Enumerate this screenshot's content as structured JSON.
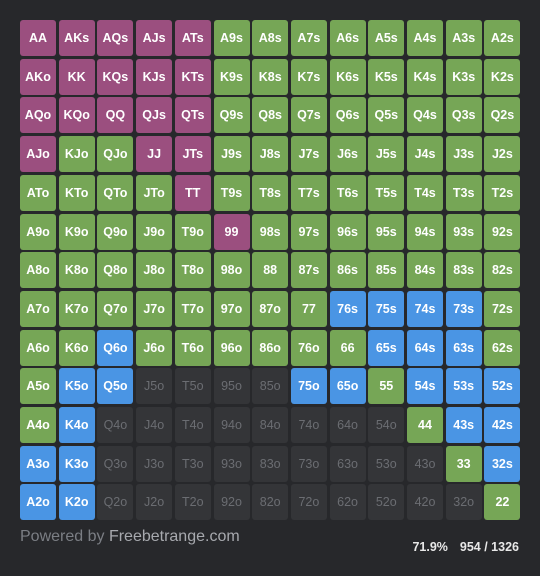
{
  "colors": {
    "raise": "#9b4f7f",
    "call": "#76a656",
    "three_bet": "#4a95e4",
    "fold": "#343538",
    "fold_text": "#6b6d72",
    "background": "#27282b"
  },
  "action_names": {
    "R": "raise",
    "C": "call",
    "B": "three_bet",
    "F": "fold"
  },
  "grid": {
    "rows": [
      [
        "AA",
        "AKs",
        "AQs",
        "AJs",
        "ATs",
        "A9s",
        "A8s",
        "A7s",
        "A6s",
        "A5s",
        "A4s",
        "A3s",
        "A2s"
      ],
      [
        "AKo",
        "KK",
        "KQs",
        "KJs",
        "KTs",
        "K9s",
        "K8s",
        "K7s",
        "K6s",
        "K5s",
        "K4s",
        "K3s",
        "K2s"
      ],
      [
        "AQo",
        "KQo",
        "QQ",
        "QJs",
        "QTs",
        "Q9s",
        "Q8s",
        "Q7s",
        "Q6s",
        "Q5s",
        "Q4s",
        "Q3s",
        "Q2s"
      ],
      [
        "AJo",
        "KJo",
        "QJo",
        "JJ",
        "JTs",
        "J9s",
        "J8s",
        "J7s",
        "J6s",
        "J5s",
        "J4s",
        "J3s",
        "J2s"
      ],
      [
        "ATo",
        "KTo",
        "QTo",
        "JTo",
        "TT",
        "T9s",
        "T8s",
        "T7s",
        "T6s",
        "T5s",
        "T4s",
        "T3s",
        "T2s"
      ],
      [
        "A9o",
        "K9o",
        "Q9o",
        "J9o",
        "T9o",
        "99",
        "98s",
        "97s",
        "96s",
        "95s",
        "94s",
        "93s",
        "92s"
      ],
      [
        "A8o",
        "K8o",
        "Q8o",
        "J8o",
        "T8o",
        "98o",
        "88",
        "87s",
        "86s",
        "85s",
        "84s",
        "83s",
        "82s"
      ],
      [
        "A7o",
        "K7o",
        "Q7o",
        "J7o",
        "T7o",
        "97o",
        "87o",
        "77",
        "76s",
        "75s",
        "74s",
        "73s",
        "72s"
      ],
      [
        "A6o",
        "K6o",
        "Q6o",
        "J6o",
        "T6o",
        "96o",
        "86o",
        "76o",
        "66",
        "65s",
        "64s",
        "63s",
        "62s"
      ],
      [
        "A5o",
        "K5o",
        "Q5o",
        "J5o",
        "T5o",
        "95o",
        "85o",
        "75o",
        "65o",
        "55",
        "54s",
        "53s",
        "52s"
      ],
      [
        "A4o",
        "K4o",
        "Q4o",
        "J4o",
        "T4o",
        "94o",
        "84o",
        "74o",
        "64o",
        "54o",
        "44",
        "43s",
        "42s"
      ],
      [
        "A3o",
        "K3o",
        "Q3o",
        "J3o",
        "T3o",
        "93o",
        "83o",
        "73o",
        "63o",
        "53o",
        "43o",
        "33",
        "32s"
      ],
      [
        "A2o",
        "K2o",
        "Q2o",
        "J2o",
        "T2o",
        "92o",
        "82o",
        "72o",
        "62o",
        "52o",
        "42o",
        "32o",
        "22"
      ]
    ],
    "actions": [
      "RRRRRCCCCCCCC",
      "RRRRRCCCCCCCC",
      "RRRRRCCCCCCCC",
      "RCCRRCCCCCCCC",
      "CCCCRCCCCCCCC",
      "CCCCCRCCCCCCC",
      "CCCCCCCCCCCCC",
      "CCCCCCCCBBBBC",
      "CCBCCCCCCBBBC",
      "CBBFFFFBBCBBB",
      "CBFFFFFFFFCBB",
      "BBFFFFFFFFFCB",
      "BBFFFFFFFFFFC"
    ]
  },
  "footer": {
    "powered_prefix": "Powered by ",
    "brand": "Freebetrange.com",
    "percent": "71.9%",
    "combos": "954 / 1326"
  }
}
